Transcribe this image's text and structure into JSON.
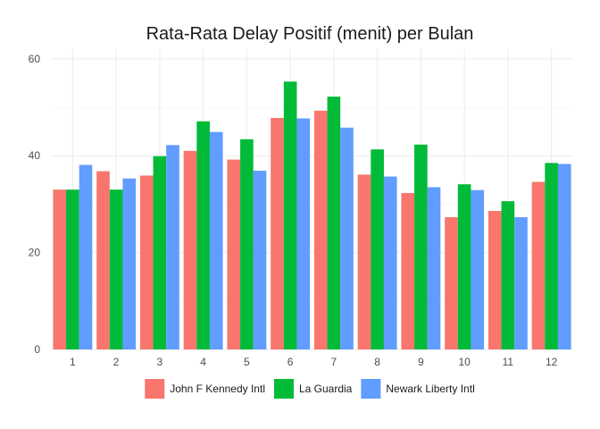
{
  "chart_data": {
    "type": "bar",
    "title": "Rata-Rata Delay Positif (menit) per Bulan",
    "xlabel": "",
    "ylabel": "",
    "categories": [
      "1",
      "2",
      "3",
      "4",
      "5",
      "6",
      "7",
      "8",
      "9",
      "10",
      "11",
      "12"
    ],
    "ylim": [
      0,
      62
    ],
    "yticks": [
      0,
      20,
      40,
      60
    ],
    "grid": true,
    "legend_position": "bottom",
    "series": [
      {
        "name": "John F Kennedy Intl",
        "color": "#F8766D",
        "values": [
          33.0,
          36.8,
          35.9,
          41.0,
          39.2,
          47.8,
          49.3,
          36.1,
          32.3,
          27.3,
          28.6,
          34.6
        ]
      },
      {
        "name": "La Guardia",
        "color": "#00BA38",
        "values": [
          33.0,
          33.0,
          39.9,
          47.1,
          43.4,
          55.3,
          52.2,
          41.3,
          42.3,
          34.1,
          30.6,
          38.5
        ]
      },
      {
        "name": "Newark Liberty Intl",
        "color": "#619CFF",
        "values": [
          38.1,
          35.3,
          42.2,
          44.9,
          36.9,
          47.7,
          45.8,
          35.7,
          33.5,
          32.9,
          27.3,
          38.3
        ]
      }
    ]
  }
}
